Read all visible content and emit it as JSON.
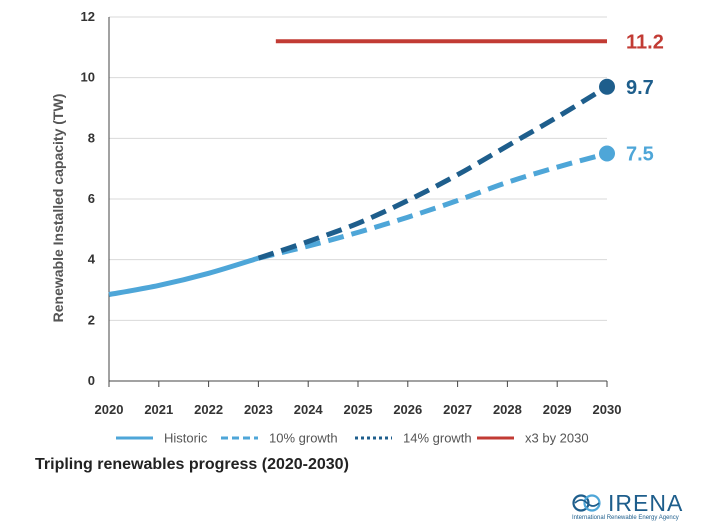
{
  "chart_data": {
    "type": "line",
    "title": "Tripling renewables progress (2020-2030)",
    "ylabel": "Renewable Installed capacity (TW)",
    "xlabel": "",
    "xlim": [
      2020,
      2030
    ],
    "ylim": [
      0,
      12
    ],
    "x_ticks": [
      "2020",
      "2021",
      "2022",
      "2023",
      "2024",
      "2025",
      "2026",
      "2027",
      "2028",
      "2029",
      "2030"
    ],
    "y_ticks": [
      "0",
      "2",
      "4",
      "6",
      "8",
      "10",
      "12"
    ],
    "grid": "horizontal",
    "legend_position": "bottom",
    "series": [
      {
        "name": "Historic",
        "style": "solid",
        "color": "#4ea6d8",
        "x": [
          2020,
          2021,
          2022,
          2023
        ],
        "y": [
          2.85,
          3.15,
          3.55,
          4.05
        ]
      },
      {
        "name": "10% growth",
        "style": "dashed",
        "color": "#4ea6d8",
        "x": [
          2023,
          2024,
          2025,
          2026,
          2027,
          2028,
          2029,
          2030
        ],
        "y": [
          4.05,
          4.45,
          4.9,
          5.4,
          5.95,
          6.55,
          7.05,
          7.5
        ]
      },
      {
        "name": "14% growth",
        "style": "dotted",
        "color": "#1e5e8c",
        "x": [
          2023,
          2024,
          2025,
          2026,
          2027,
          2028,
          2029,
          2030
        ],
        "y": [
          4.05,
          4.6,
          5.2,
          5.95,
          6.8,
          7.75,
          8.7,
          9.7
        ]
      },
      {
        "name": "x3 by 2030",
        "style": "solid",
        "color": "#c23b34",
        "x": [
          2023.35,
          2030
        ],
        "y": [
          11.2,
          11.2
        ]
      }
    ],
    "end_labels": [
      {
        "text": "11.2",
        "value": 11.2,
        "color": "#c23b34"
      },
      {
        "text": "9.7",
        "value": 9.7,
        "color": "#1e5e8c"
      },
      {
        "text": "7.5",
        "value": 7.5,
        "color": "#4ea6d8"
      }
    ]
  },
  "logo": {
    "word": "IRENA",
    "tagline": "International Renewable Energy Agency",
    "color": "#1e5e8c"
  }
}
